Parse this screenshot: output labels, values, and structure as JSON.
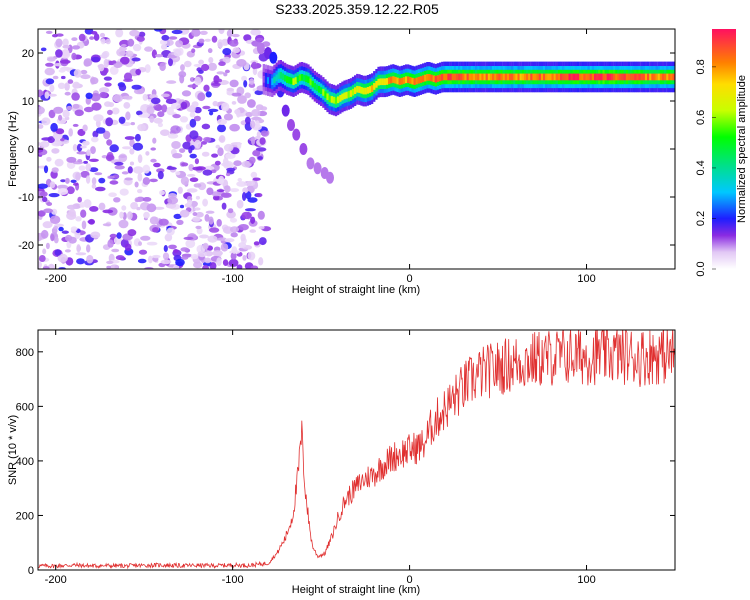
{
  "figure": {
    "title": "S233.2025.359.12.22.R05"
  },
  "chart_data": [
    {
      "type": "heatmap",
      "title": "S233.2025.359.12.22.R05",
      "xlabel": "Height of straight line (km)",
      "ylabel": "Frequency (Hz)",
      "xlim": [
        -210,
        150
      ],
      "ylim": [
        -25,
        25
      ],
      "xticks": [
        -200,
        -100,
        0,
        100
      ],
      "yticks": [
        -20,
        -10,
        0,
        10,
        20
      ],
      "colorbar": {
        "label": "Normalized spectral amplitude",
        "range": [
          0,
          0.95
        ],
        "ticks": [
          0.0,
          0.2,
          0.4,
          0.6,
          0.8
        ]
      },
      "noise_region_x": [
        -210,
        -85
      ],
      "tone": {
        "x": [
          -83,
          -78,
          -74,
          -70,
          -66,
          -62,
          -58,
          -54,
          -50,
          -46,
          -42,
          -38,
          -34,
          -30,
          -26,
          -22,
          -18,
          -14,
          -10,
          -6,
          -2,
          2,
          6,
          10,
          14,
          18,
          22,
          30,
          40,
          50,
          60,
          70,
          80,
          90,
          100,
          110,
          120,
          130,
          140,
          150
        ],
        "freq": [
          14.5,
          14.0,
          15.5,
          14.5,
          14.0,
          15.0,
          14.5,
          13.0,
          12.0,
          10.5,
          10.0,
          11.0,
          11.5,
          12.5,
          12.0,
          12.5,
          14.0,
          14.0,
          14.5,
          14.0,
          14.5,
          14.0,
          14.5,
          15.0,
          14.5,
          15.0,
          15.0,
          15.0,
          15.0,
          15.0,
          15.0,
          15.0,
          15.0,
          15.0,
          15.0,
          15.0,
          15.0,
          15.0,
          15.0,
          15.0
        ],
        "amp": [
          0.15,
          0.3,
          0.45,
          0.5,
          0.6,
          0.5,
          0.55,
          0.5,
          0.55,
          0.6,
          0.6,
          0.6,
          0.65,
          0.65,
          0.7,
          0.75,
          0.7,
          0.75,
          0.8,
          0.8,
          0.8,
          0.85,
          0.8,
          0.85,
          0.85,
          0.85,
          0.9,
          0.85,
          0.8,
          0.85,
          0.8,
          0.85,
          0.8,
          0.9,
          0.85,
          0.9,
          0.85,
          0.85,
          0.8,
          0.85
        ]
      },
      "tail": {
        "x": [
          -84,
          -80,
          -77,
          -75,
          -73,
          -70,
          -67,
          -64,
          -60,
          -56,
          -52,
          -48,
          -45
        ],
        "freq": [
          21,
          20,
          19,
          16,
          12,
          8,
          5,
          3,
          0,
          -3,
          -4,
          -5,
          -6
        ],
        "amp": [
          0.1,
          0.15,
          0.2,
          0.18,
          0.18,
          0.15,
          0.12,
          0.12,
          0.12,
          0.1,
          0.1,
          0.1,
          0.1
        ]
      }
    },
    {
      "type": "line",
      "xlabel": "Height of straight line (km)",
      "ylabel": "SNR (10 * v/v)",
      "xlim": [
        -210,
        150
      ],
      "ylim": [
        0,
        880
      ],
      "xticks": [
        -200,
        -100,
        0,
        100
      ],
      "yticks": [
        0,
        200,
        400,
        600,
        800
      ],
      "series": [
        {
          "color": "#e03030",
          "x": [
            -210,
            -200,
            -190,
            -180,
            -170,
            -160,
            -150,
            -140,
            -130,
            -120,
            -110,
            -100,
            -90,
            -80,
            -75,
            -70,
            -66,
            -63,
            -61,
            -59,
            -57,
            -55,
            -52,
            -48,
            -44,
            -40,
            -36,
            -32,
            -28,
            -24,
            -20,
            -16,
            -12,
            -8,
            -4,
            0,
            4,
            8,
            12,
            16,
            20,
            24,
            28,
            32,
            36,
            40,
            45,
            50,
            60,
            70,
            80,
            90,
            100,
            110,
            120,
            130,
            140,
            150
          ],
          "y": [
            15,
            15,
            18,
            15,
            16,
            15,
            17,
            18,
            16,
            17,
            16,
            18,
            17,
            25,
            60,
            120,
            200,
            350,
            500,
            300,
            180,
            90,
            50,
            60,
            120,
            200,
            260,
            290,
            320,
            340,
            350,
            380,
            400,
            420,
            430,
            440,
            450,
            460,
            520,
            560,
            590,
            620,
            650,
            680,
            700,
            720,
            730,
            740,
            760,
            770,
            780,
            785,
            785,
            790,
            790,
            780,
            790,
            790
          ]
        }
      ]
    }
  ]
}
